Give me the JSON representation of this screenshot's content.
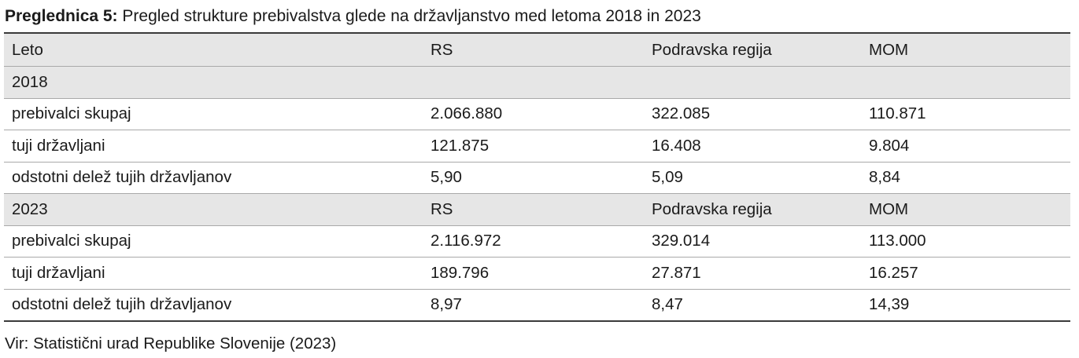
{
  "caption": {
    "label": "Preglednica 5:",
    "text": " Pregled strukture prebivalstva glede na državljanstvo med letoma 2018 in 2023"
  },
  "table": {
    "header": [
      "Leto",
      "RS",
      "Podravska regija",
      "MOM"
    ],
    "section_2018": {
      "year": "2018",
      "rows": [
        [
          "prebivalci skupaj",
          "2.066.880",
          "322.085",
          "110.871"
        ],
        [
          "tuji državljani",
          "121.875",
          "16.408",
          "9.804"
        ],
        [
          "odstotni delež tujih državljanov",
          "5,90",
          "5,09",
          "8,84"
        ]
      ]
    },
    "section_2023": {
      "year": "2023",
      "col_labels": [
        "RS",
        "Podravska regija",
        "MOM"
      ],
      "rows": [
        [
          "prebivalci skupaj",
          "2.116.972",
          "329.014",
          "113.000"
        ],
        [
          "tuji državljani",
          "189.796",
          "27.871",
          "16.257"
        ],
        [
          "odstotni delež tujih državljanov",
          "8,97",
          "8,47",
          "14,39"
        ]
      ]
    }
  },
  "source": "Vir: Statistični urad Republike Slovenije (2023)",
  "colors": {
    "shaded_row": "#e6e6e6",
    "rule": "#3a3a3a"
  }
}
